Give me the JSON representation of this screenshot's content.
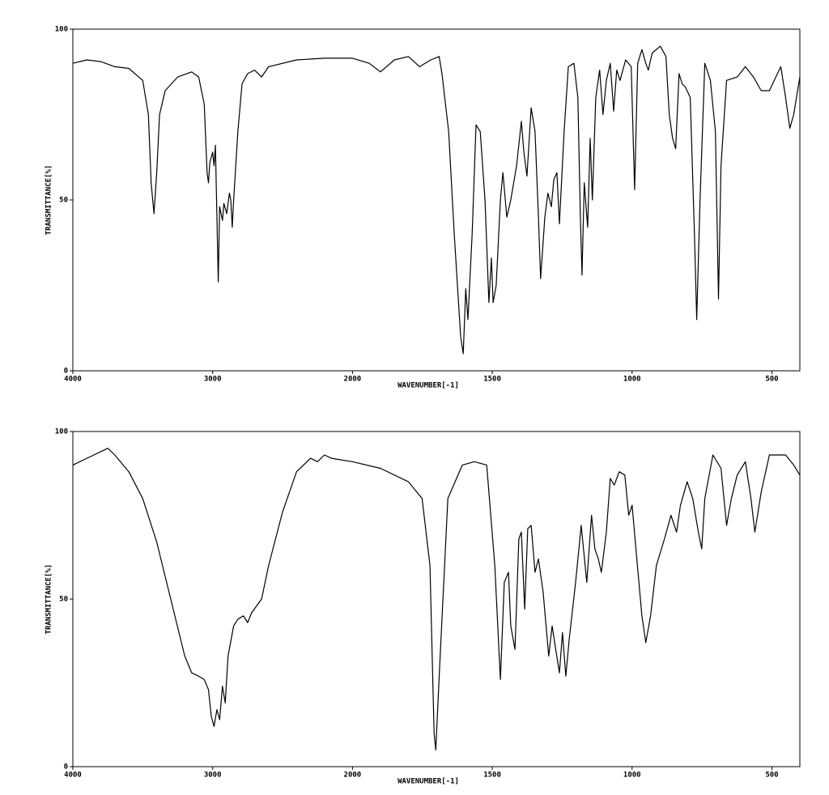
{
  "chart_data": [
    {
      "type": "line",
      "xlabel": "WAVENUMBER[-1]",
      "ylabel": "TRANSMITTANCE[%]",
      "color": "#000000",
      "xlim": [
        4000,
        400
      ],
      "xticks": [
        4000,
        3000,
        2000,
        1500,
        1000,
        500
      ],
      "x_scale_change": {
        "at": 2000,
        "factor": 2
      },
      "ylim": [
        0,
        100
      ],
      "yticks": [
        0,
        50,
        100
      ],
      "x": [
        4000,
        3900,
        3800,
        3700,
        3600,
        3500,
        3460,
        3440,
        3420,
        3400,
        3380,
        3340,
        3250,
        3150,
        3100,
        3060,
        3040,
        3030,
        3020,
        3000,
        2990,
        2980,
        2960,
        2950,
        2930,
        2920,
        2900,
        2880,
        2870,
        2860,
        2850,
        2820,
        2790,
        2750,
        2700,
        2650,
        2600,
        2400,
        2200,
        2000,
        1940,
        1900,
        1850,
        1800,
        1760,
        1720,
        1690,
        1680,
        1656,
        1636,
        1613,
        1604,
        1595,
        1587,
        1572,
        1558,
        1543,
        1526,
        1512,
        1503,
        1497,
        1486,
        1471,
        1462,
        1448,
        1434,
        1413,
        1396,
        1387,
        1376,
        1361,
        1347,
        1335,
        1327,
        1312,
        1301,
        1289,
        1280,
        1269,
        1260,
        1243,
        1228,
        1208,
        1194,
        1185,
        1179,
        1171,
        1159,
        1150,
        1142,
        1130,
        1116,
        1104,
        1092,
        1078,
        1066,
        1055,
        1043,
        1023,
        1003,
        991,
        980,
        965,
        951,
        942,
        928,
        899,
        879,
        867,
        855,
        844,
        832,
        821,
        809,
        792,
        777,
        769,
        757,
        740,
        720,
        702,
        691,
        682,
        662,
        624,
        595,
        566,
        538,
        509,
        486,
        468,
        451,
        436,
        422,
        400
      ],
      "values": [
        90,
        91,
        90.5,
        89,
        88.5,
        85,
        75,
        55,
        46,
        58,
        75,
        82,
        86,
        87.5,
        86,
        78,
        58,
        55,
        61,
        64,
        60,
        66,
        26,
        48,
        44,
        49,
        46,
        52,
        50,
        42,
        50,
        70,
        84,
        87,
        88,
        86,
        89,
        91,
        91.5,
        91.5,
        90,
        87.5,
        91,
        92,
        89,
        91,
        92,
        87,
        70,
        40,
        10,
        5,
        24,
        15,
        40,
        72,
        70,
        50,
        20,
        33,
        20,
        25,
        50,
        58,
        45,
        50,
        60,
        73,
        64,
        57,
        77,
        70,
        45,
        27,
        45,
        52,
        48,
        56,
        58,
        43,
        70,
        89,
        90,
        80,
        45,
        28,
        55,
        42,
        68,
        50,
        80,
        88,
        75,
        85,
        90,
        76,
        88,
        85,
        91,
        89,
        53,
        90,
        94,
        90,
        88,
        93,
        95,
        92,
        75,
        68,
        65,
        87,
        84,
        83,
        80,
        40,
        15,
        50,
        90,
        85,
        70,
        21,
        60,
        85,
        86,
        89,
        86,
        82,
        82,
        86,
        89,
        80,
        71,
        75,
        86
      ]
    },
    {
      "type": "line",
      "xlabel": "WAVENUMBER[-1]",
      "ylabel": "TRANSMITTANCE[%]",
      "color": "#000000",
      "xlim": [
        4000,
        400
      ],
      "xticks": [
        4000,
        3000,
        2000,
        1500,
        1000,
        500
      ],
      "x_scale_change": {
        "at": 2000,
        "factor": 2
      },
      "ylim": [
        0,
        100
      ],
      "yticks": [
        0,
        50,
        100
      ],
      "x": [
        4000,
        3850,
        3750,
        3700,
        3600,
        3500,
        3400,
        3300,
        3200,
        3150,
        3100,
        3060,
        3030,
        3010,
        2990,
        2970,
        2950,
        2930,
        2910,
        2890,
        2850,
        2820,
        2780,
        2750,
        2720,
        2650,
        2600,
        2500,
        2400,
        2300,
        2250,
        2200,
        2150,
        2000,
        1900,
        1800,
        1751,
        1723,
        1708,
        1702,
        1688,
        1659,
        1607,
        1564,
        1520,
        1491,
        1471,
        1457,
        1442,
        1434,
        1419,
        1405,
        1396,
        1384,
        1373,
        1361,
        1347,
        1335,
        1318,
        1298,
        1286,
        1275,
        1260,
        1249,
        1237,
        1225,
        1202,
        1182,
        1162,
        1145,
        1133,
        1121,
        1110,
        1092,
        1078,
        1064,
        1046,
        1026,
        1012,
        1000,
        983,
        965,
        951,
        934,
        913,
        884,
        861,
        841,
        827,
        803,
        783,
        763,
        751,
        740,
        711,
        682,
        662,
        645,
        624,
        595,
        575,
        561,
        538,
        509,
        451,
        422,
        400
      ],
      "values": [
        90,
        93,
        95,
        93,
        88,
        80,
        67,
        50,
        33,
        28,
        27,
        26,
        23,
        15,
        12,
        17,
        14,
        24,
        19,
        33,
        42,
        44,
        45,
        43,
        46,
        50,
        60,
        76,
        88,
        92,
        91,
        93,
        92,
        91,
        89,
        85,
        80,
        60,
        10,
        5,
        30,
        80,
        90,
        91,
        90,
        60,
        26,
        55,
        58,
        42,
        35,
        68,
        70,
        47,
        71,
        72,
        58,
        62,
        52,
        33,
        42,
        36,
        28,
        40,
        27,
        38,
        55,
        72,
        55,
        75,
        65,
        62,
        58,
        70,
        86,
        84,
        88,
        87,
        75,
        78,
        62,
        45,
        37,
        45,
        60,
        68,
        75,
        70,
        78,
        85,
        80,
        70,
        65,
        80,
        93,
        89,
        72,
        80,
        87,
        91,
        80,
        70,
        82,
        93,
        93,
        90,
        87
      ]
    }
  ]
}
